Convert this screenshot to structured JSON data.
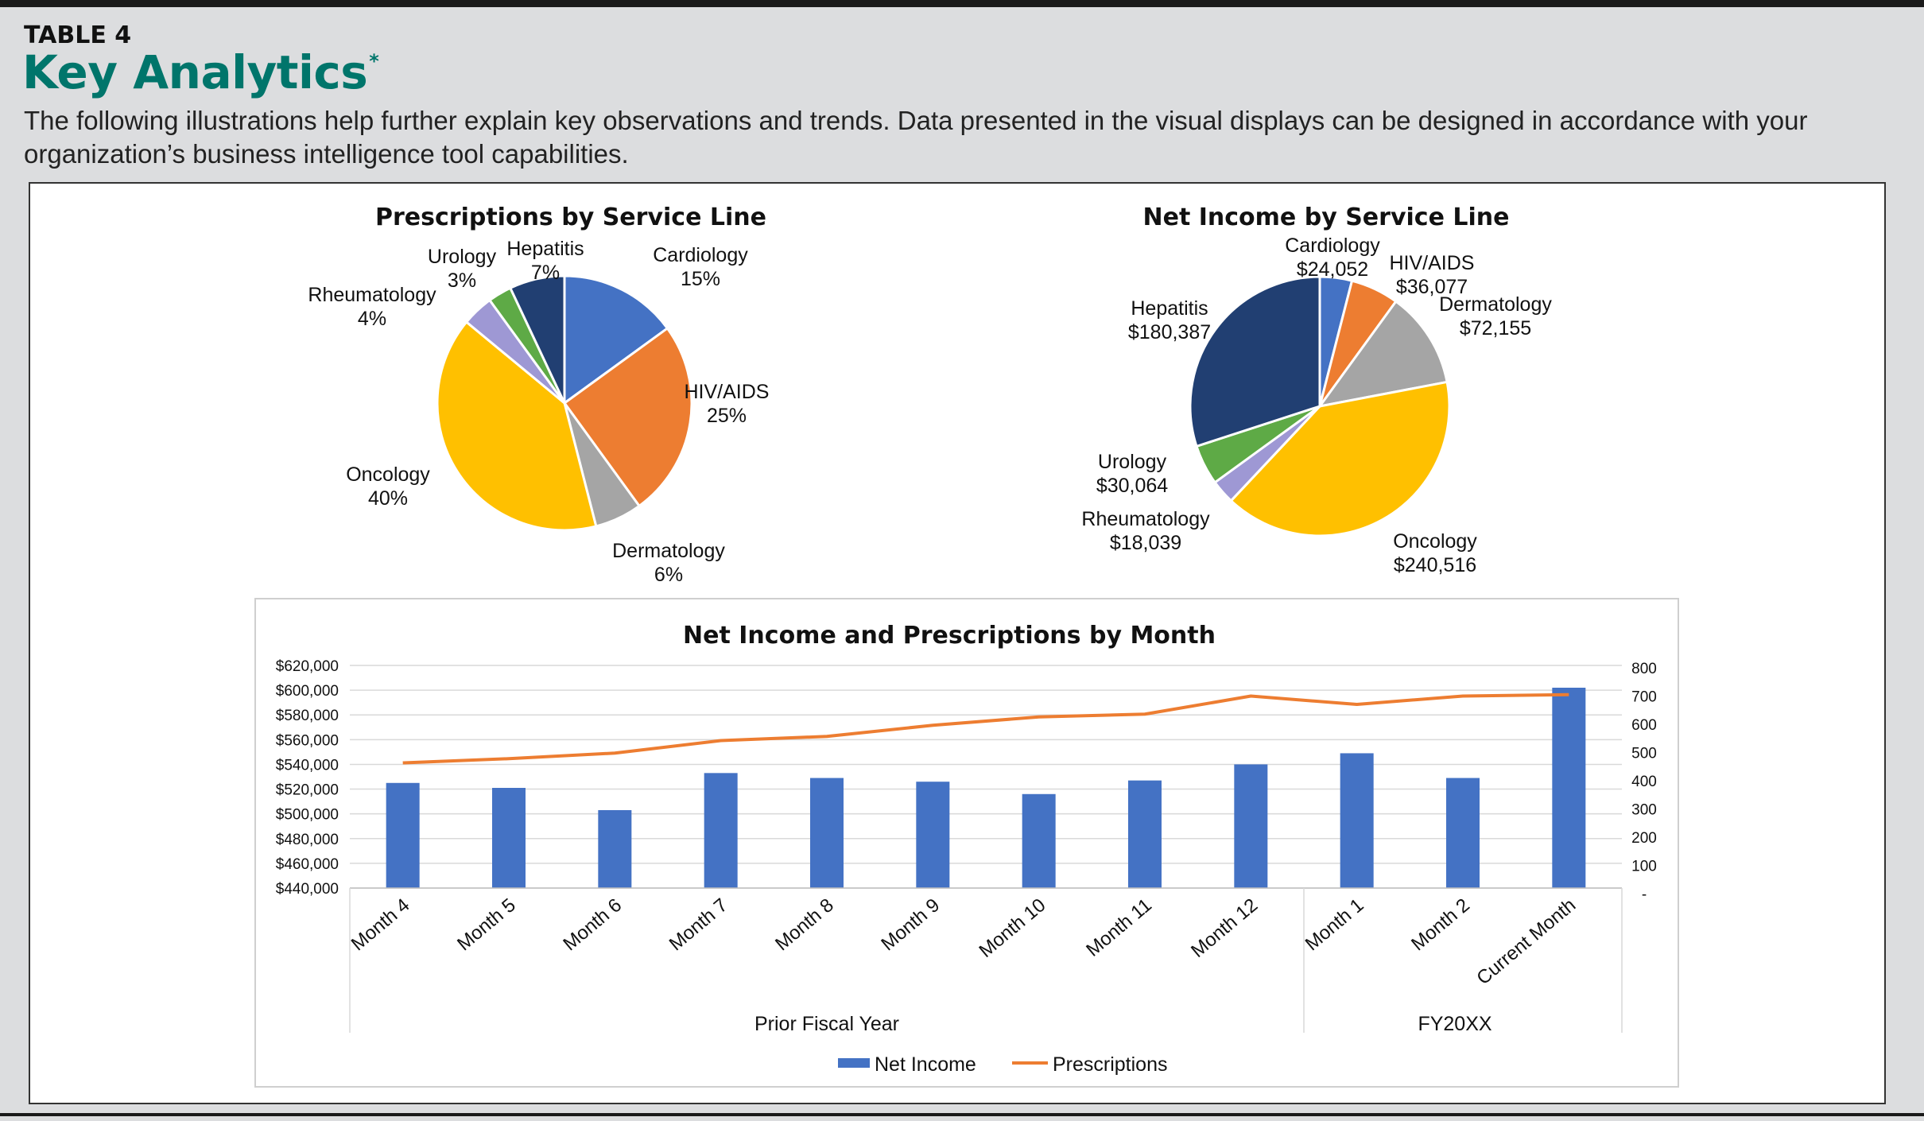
{
  "header": {
    "table_label": "TABLE 4",
    "title": "Key Analytics",
    "title_mark": "*",
    "subtitle": "The following illustrations help further explain key observations and trends. Data presented in the visual displays can be designed in accordance with your organization’s business intelligence tool capabilities."
  },
  "chart_data": [
    {
      "type": "pie",
      "title": "Prescriptions by Service Line",
      "labels": [
        "Cardiology",
        "HIV/AIDS",
        "Dermatology",
        "Oncology",
        "Rheumatology",
        "Urology",
        "Hepatitis"
      ],
      "values": [
        15,
        25,
        6,
        40,
        4,
        3,
        7
      ],
      "value_labels": [
        "15%",
        "25%",
        "6%",
        "40%",
        "4%",
        "3%",
        "7%"
      ],
      "colors": [
        "#4472c4",
        "#ed7d31",
        "#a5a5a5",
        "#ffc000",
        "#9e98d4",
        "#5eaa46",
        "#213f72"
      ]
    },
    {
      "type": "pie",
      "title": "Net Income by Service Line",
      "labels": [
        "Cardiology",
        "HIV/AIDS",
        "Dermatology",
        "Oncology",
        "Rheumatology",
        "Urology",
        "Hepatitis"
      ],
      "values": [
        24052,
        36077,
        72155,
        240516,
        18039,
        30064,
        180387
      ],
      "value_labels": [
        "$24,052",
        "$36,077",
        "$72,155",
        "$240,516",
        "$18,039",
        "$30,064",
        "$180,387"
      ],
      "colors": [
        "#4472c4",
        "#ed7d31",
        "#a5a5a5",
        "#ffc000",
        "#9e98d4",
        "#5eaa46",
        "#213f72"
      ]
    },
    {
      "type": "bar",
      "title": "Net Income and Prescriptions by Month",
      "categories": [
        "Month 4",
        "Month 5",
        "Month 6",
        "Month 7",
        "Month 8",
        "Month 9",
        "Month 10",
        "Month 11",
        "Month 12",
        "Month 1",
        "Month 2",
        "Current Month"
      ],
      "groups": [
        {
          "label": "Prior Fiscal Year",
          "count": 9
        },
        {
          "label": "FY20XX",
          "count": 3
        }
      ],
      "series": [
        {
          "name": "Net Income",
          "kind": "bar",
          "axis": "left",
          "color": "#4472c4",
          "values": [
            525000,
            521000,
            503000,
            533000,
            529000,
            526000,
            516000,
            527000,
            540000,
            549000,
            529000,
            602000
          ]
        },
        {
          "name": "Prescriptions",
          "kind": "line",
          "axis": "right",
          "color": "#ed7d31",
          "values": [
            450,
            465,
            485,
            530,
            545,
            585,
            615,
            625,
            690,
            660,
            690,
            695
          ]
        }
      ],
      "y_left": {
        "min": 440000,
        "max": 620000,
        "ticks": [
          "$620,000",
          "$600,000",
          "$580,000",
          "$560,000",
          "$540,000",
          "$520,000",
          "$500,000",
          "$480,000",
          "$460,000",
          "$440,000"
        ]
      },
      "y_right": {
        "min": 0,
        "max": 800,
        "ticks": [
          "800",
          "700",
          "600",
          "500",
          "400",
          "300",
          "200",
          "100",
          "-"
        ]
      },
      "grid": true,
      "legend": "bottom"
    }
  ]
}
